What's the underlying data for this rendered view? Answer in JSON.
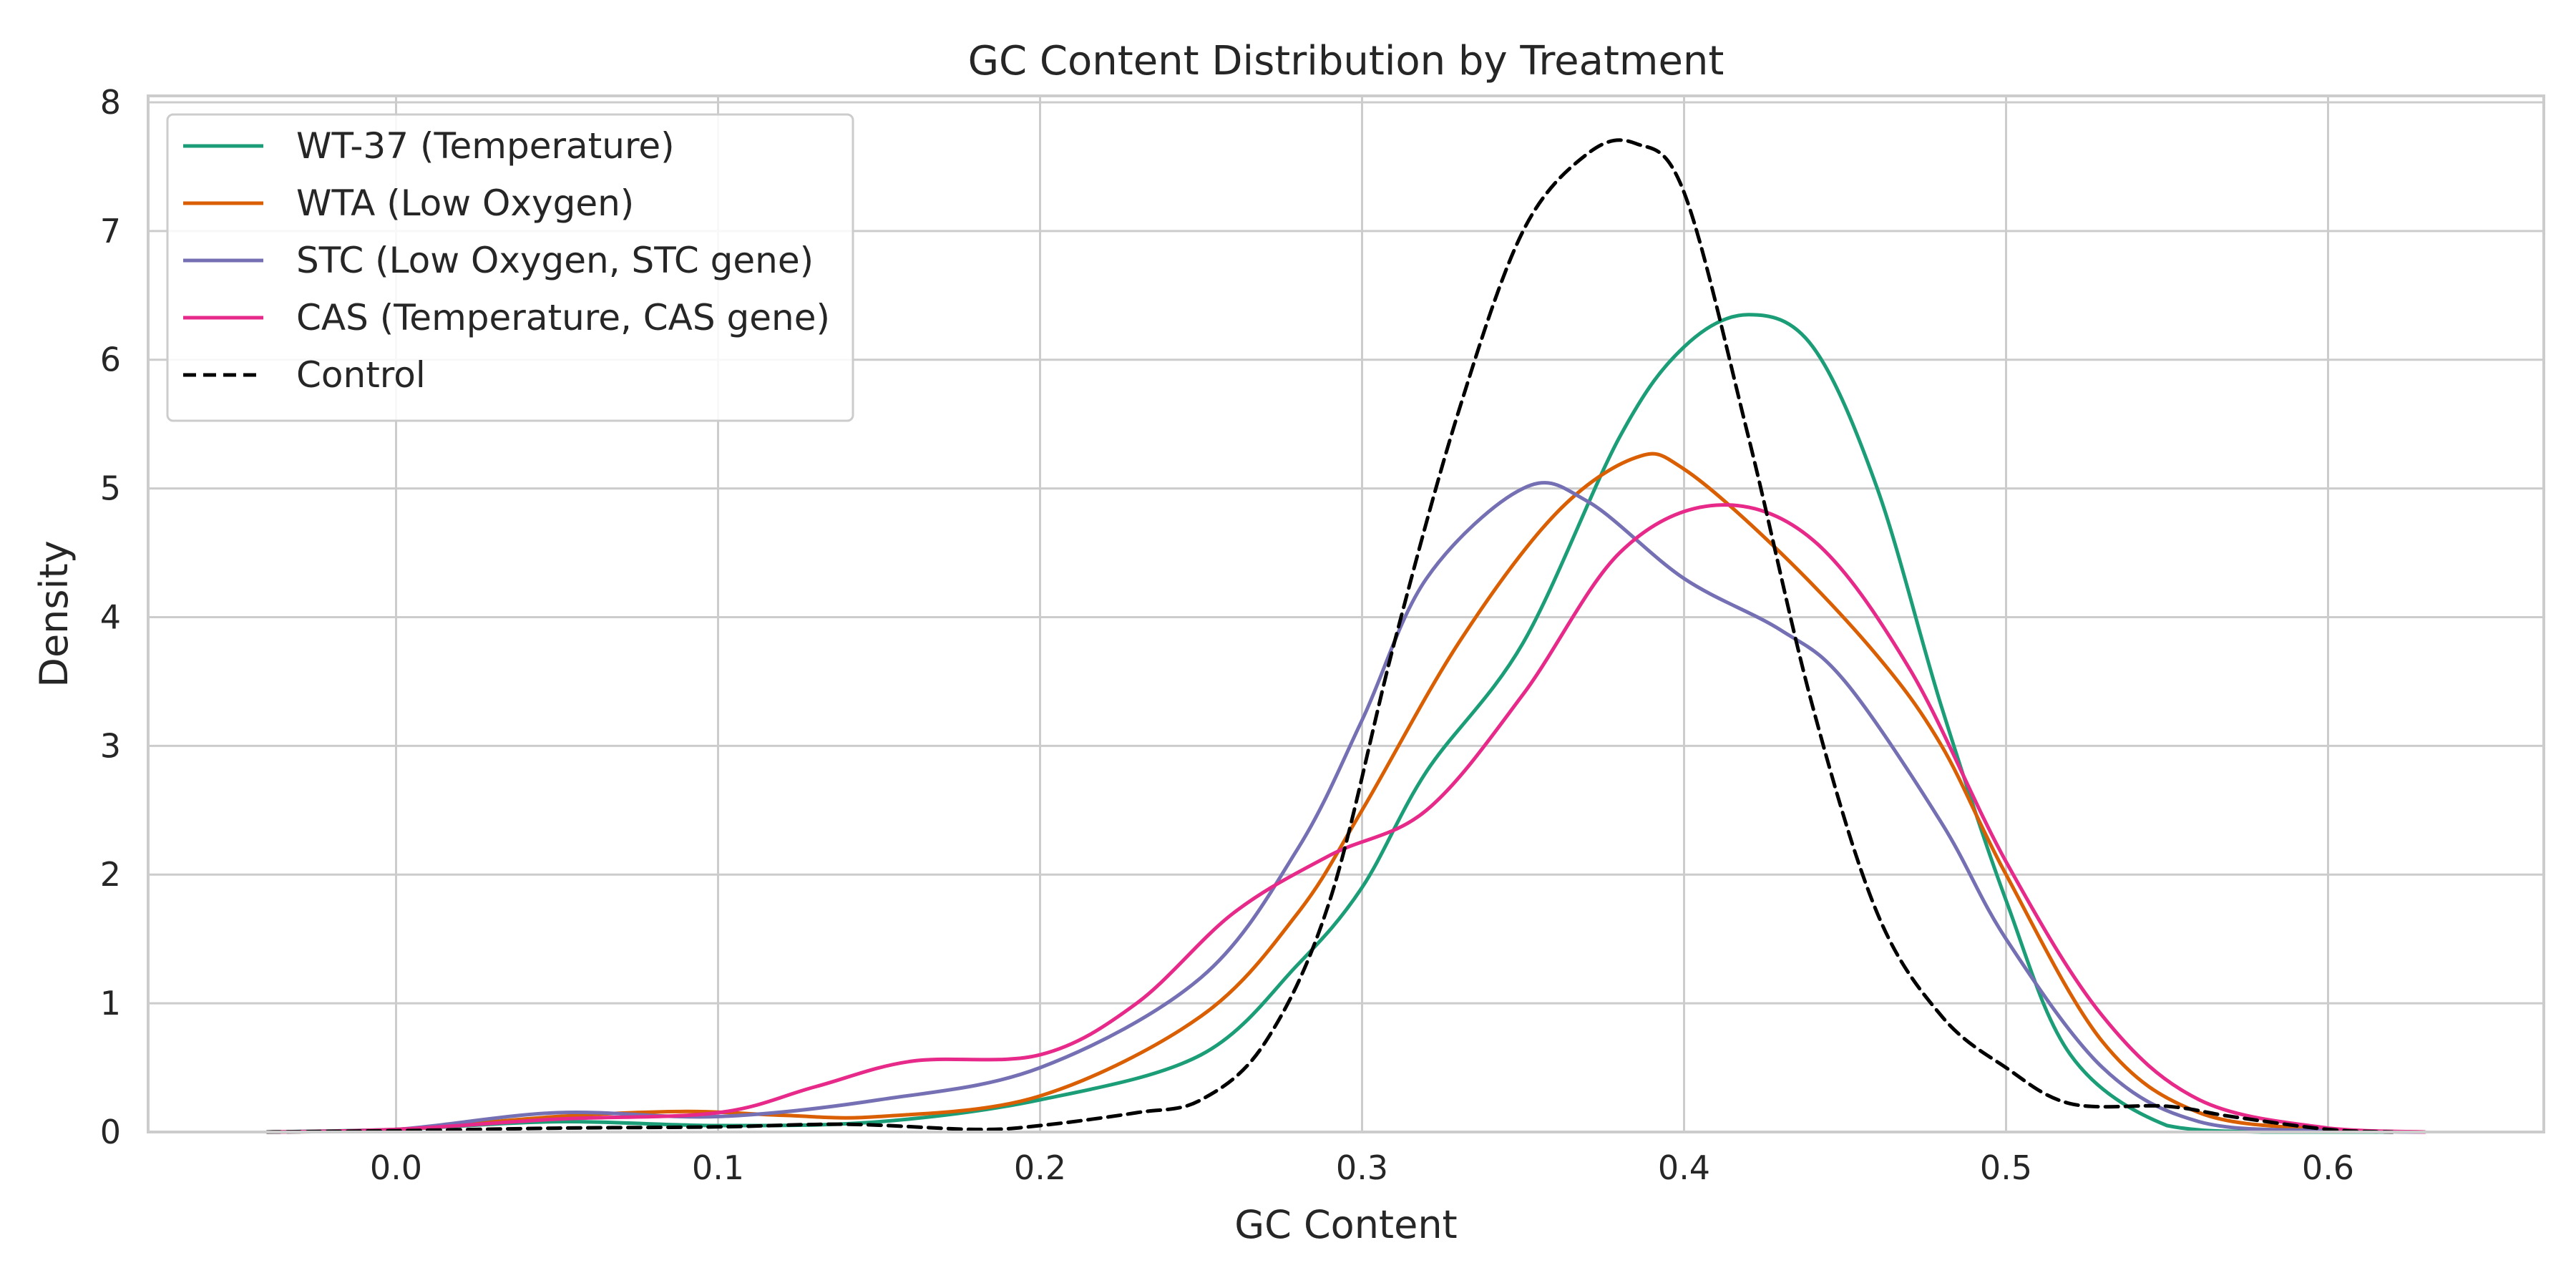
{
  "chart_data": {
    "type": "line",
    "title": "GC Content Distribution by Treatment",
    "xlabel": "GC Content",
    "ylabel": "Density",
    "xlim": [
      -0.077,
      0.667
    ],
    "ylim": [
      0,
      8.05
    ],
    "xticks": [
      0.0,
      0.1,
      0.2,
      0.3,
      0.4,
      0.5,
      0.6
    ],
    "xtick_labels": [
      "0.0",
      "0.1",
      "0.2",
      "0.3",
      "0.4",
      "0.5",
      "0.6"
    ],
    "yticks": [
      0,
      1,
      2,
      3,
      4,
      5,
      6,
      7,
      8
    ],
    "ytick_labels": [
      "0",
      "1",
      "2",
      "3",
      "4",
      "5",
      "6",
      "7",
      "8"
    ],
    "grid": true,
    "legend_position": "top-left",
    "series": [
      {
        "name": "WT-37 (Temperature)",
        "color": "#1b9e77",
        "dash": "solid",
        "x": [
          -0.04,
          0.0,
          0.05,
          0.1,
          0.15,
          0.2,
          0.25,
          0.28,
          0.3,
          0.32,
          0.35,
          0.38,
          0.4,
          0.42,
          0.44,
          0.46,
          0.48,
          0.5,
          0.52,
          0.55,
          0.58,
          0.62
        ],
        "y": [
          0.0,
          0.02,
          0.08,
          0.05,
          0.08,
          0.25,
          0.6,
          1.3,
          1.9,
          2.8,
          3.8,
          5.4,
          6.1,
          6.35,
          6.1,
          5.0,
          3.3,
          1.8,
          0.6,
          0.05,
          0.0,
          0.0
        ]
      },
      {
        "name": "WTA (Low Oxygen)",
        "color": "#d95f02",
        "dash": "solid",
        "x": [
          -0.04,
          0.0,
          0.05,
          0.09,
          0.12,
          0.15,
          0.2,
          0.25,
          0.28,
          0.3,
          0.33,
          0.36,
          0.385,
          0.4,
          0.43,
          0.46,
          0.48,
          0.5,
          0.53,
          0.56,
          0.6,
          0.63
        ],
        "y": [
          0.0,
          0.02,
          0.12,
          0.16,
          0.13,
          0.12,
          0.28,
          0.9,
          1.7,
          2.5,
          3.8,
          4.8,
          5.24,
          5.15,
          4.5,
          3.7,
          3.0,
          2.0,
          0.7,
          0.15,
          0.02,
          0.0
        ]
      },
      {
        "name": "STC (Low Oxygen, STC gene)",
        "color": "#7570b3",
        "dash": "solid",
        "x": [
          -0.04,
          0.0,
          0.05,
          0.1,
          0.15,
          0.2,
          0.25,
          0.28,
          0.3,
          0.32,
          0.35,
          0.37,
          0.4,
          0.43,
          0.45,
          0.48,
          0.5,
          0.53,
          0.56,
          0.6,
          0.63
        ],
        "y": [
          0.0,
          0.02,
          0.15,
          0.12,
          0.25,
          0.5,
          1.2,
          2.2,
          3.2,
          4.3,
          5.0,
          4.9,
          4.3,
          3.9,
          3.5,
          2.4,
          1.5,
          0.5,
          0.08,
          0.01,
          0.0
        ]
      },
      {
        "name": "CAS (Temperature, CAS gene)",
        "color": "#e7298a",
        "dash": "solid",
        "x": [
          -0.04,
          0.0,
          0.05,
          0.1,
          0.13,
          0.16,
          0.2,
          0.23,
          0.26,
          0.29,
          0.32,
          0.35,
          0.38,
          0.41,
          0.44,
          0.47,
          0.5,
          0.53,
          0.56,
          0.6,
          0.63
        ],
        "y": [
          0.0,
          0.02,
          0.1,
          0.15,
          0.35,
          0.55,
          0.6,
          1.0,
          1.7,
          2.15,
          2.5,
          3.4,
          4.5,
          4.87,
          4.6,
          3.6,
          2.1,
          0.9,
          0.25,
          0.03,
          0.0
        ]
      },
      {
        "name": "Control",
        "color": "#000000",
        "dash": "dashed",
        "x": [
          -0.04,
          0.0,
          0.05,
          0.1,
          0.14,
          0.18,
          0.2,
          0.23,
          0.25,
          0.27,
          0.29,
          0.31,
          0.33,
          0.35,
          0.37,
          0.385,
          0.4,
          0.42,
          0.44,
          0.46,
          0.48,
          0.5,
          0.52,
          0.55,
          0.57,
          0.6,
          0.62
        ],
        "y": [
          0.0,
          0.01,
          0.03,
          0.04,
          0.06,
          0.02,
          0.05,
          0.15,
          0.25,
          0.7,
          1.8,
          3.8,
          5.6,
          7.0,
          7.6,
          7.68,
          7.3,
          5.4,
          3.3,
          1.7,
          0.9,
          0.5,
          0.22,
          0.2,
          0.12,
          0.02,
          0.0
        ]
      }
    ]
  }
}
